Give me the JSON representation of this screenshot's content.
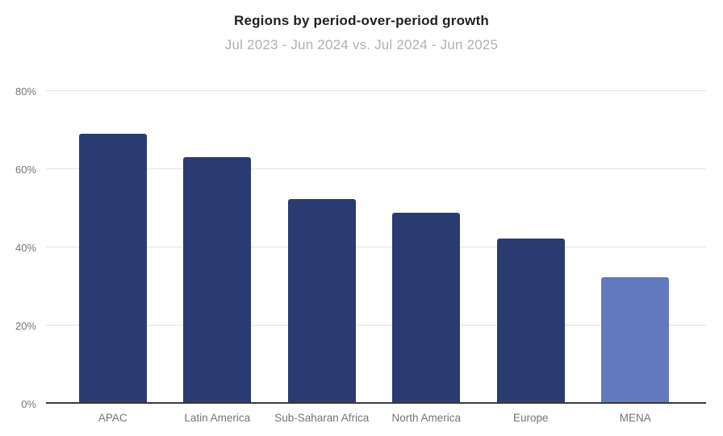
{
  "title": "Regions by period-over-period growth",
  "subtitle": "Jul 2023 - Jun 2024 vs. Jul 2024 - Jun 2025",
  "chart_data": {
    "type": "bar",
    "title": "Regions by period-over-period growth",
    "subtitle": "Jul 2023 - Jun 2024 vs. Jul 2024 - Jun 2025",
    "categories": [
      "APAC",
      "Latin America",
      "Sub-Saharan Africa",
      "North America",
      "Europe",
      "MENA"
    ],
    "values": [
      69,
      63,
      52.3,
      48.9,
      42.2,
      32.4
    ],
    "xlabel": "",
    "ylabel": "",
    "ylim": [
      0,
      80
    ],
    "yticks": [
      0,
      20,
      40,
      60,
      80
    ],
    "ytick_labels": [
      "0%",
      "20%",
      "40%",
      "60%",
      "80%"
    ],
    "grid": true,
    "legend": false,
    "bar_colors": [
      "#2a3b72",
      "#2a3b72",
      "#2a3b72",
      "#2a3b72",
      "#2a3b72",
      "#6379bd"
    ]
  },
  "colors": {
    "bar_default": "#2a3b72",
    "bar_highlight": "#6379bd",
    "title_text": "#212121",
    "subtitle_text": "#b1b1b1",
    "axis_label": "#757575",
    "gridline": "#e2e2e2",
    "axis_line": "#3a3a3a",
    "background": "#ffffff"
  }
}
